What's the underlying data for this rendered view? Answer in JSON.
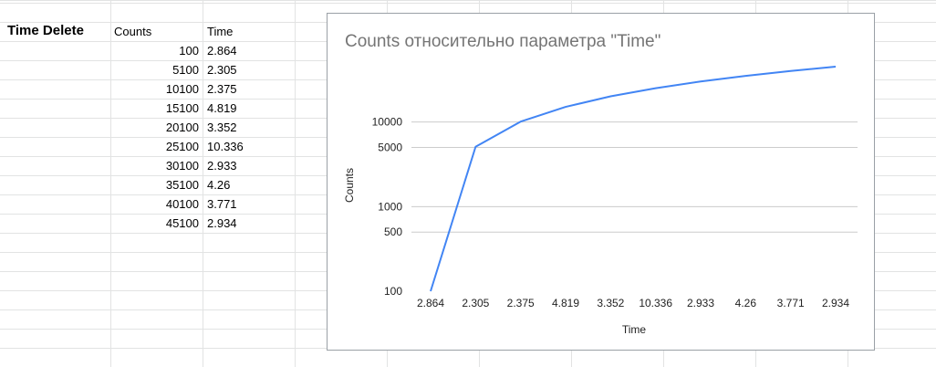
{
  "sheet": {
    "title": "Time Delete",
    "headers": {
      "counts": "Counts",
      "time": "Time"
    },
    "rows": [
      {
        "counts": "100",
        "time": "2.864"
      },
      {
        "counts": "5100",
        "time": "2.305"
      },
      {
        "counts": "10100",
        "time": "2.375"
      },
      {
        "counts": "15100",
        "time": "4.819"
      },
      {
        "counts": "20100",
        "time": "3.352"
      },
      {
        "counts": "25100",
        "time": "10.336"
      },
      {
        "counts": "30100",
        "time": "2.933"
      },
      {
        "counts": "35100",
        "time": "4.26"
      },
      {
        "counts": "40100",
        "time": "3.771"
      },
      {
        "counts": "45100",
        "time": "2.934"
      }
    ]
  },
  "chart_data": {
    "type": "line",
    "title": "Counts относительно параметра \"Time\"",
    "xlabel": "Time",
    "ylabel": "Counts",
    "y_scale": "log",
    "ylim": [
      100,
      45100
    ],
    "yticks": [
      100,
      500,
      1000,
      5000,
      10000
    ],
    "ytick_labels": [
      "100",
      "500",
      "1000",
      "5000",
      "10000"
    ],
    "categories": [
      "2.864",
      "2.305",
      "2.375",
      "4.819",
      "3.352",
      "10.336",
      "2.933",
      "4.26",
      "3.771",
      "2.934"
    ],
    "series": [
      {
        "values": [
          100,
          5100,
          10100,
          15100,
          20100,
          25100,
          30100,
          35100,
          40100,
          45100
        ]
      }
    ],
    "grid": true,
    "legend": "none",
    "line_color": "#4285f4"
  }
}
